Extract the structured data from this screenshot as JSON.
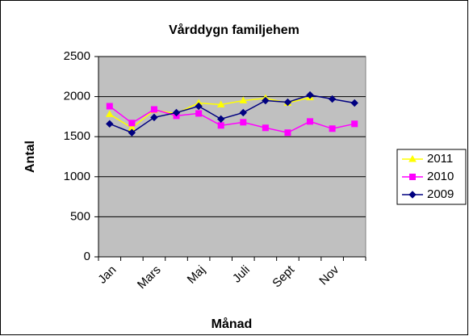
{
  "chart_data": {
    "type": "line",
    "title": "Vårddygn familjehem",
    "x_label": "Månad",
    "y_label": "Antal",
    "categories": [
      "Jan",
      null,
      "Mars",
      null,
      "Maj",
      null,
      "Juli",
      null,
      "Sept",
      null,
      "Nov",
      null
    ],
    "series": [
      {
        "name": "2011",
        "color": "#ffff00",
        "marker": "triangle",
        "values": [
          1780,
          1610,
          1830,
          1790,
          1920,
          1900,
          1950,
          1980,
          1920,
          1990,
          null,
          null
        ]
      },
      {
        "name": "2010",
        "color": "#ff00ff",
        "marker": "square",
        "values": [
          1880,
          1670,
          1840,
          1760,
          1790,
          1640,
          1680,
          1610,
          1550,
          1690,
          1600,
          1660
        ]
      },
      {
        "name": "2009",
        "color": "#000080",
        "marker": "diamond",
        "values": [
          1660,
          1550,
          1740,
          1800,
          1880,
          1720,
          1800,
          1950,
          1930,
          2020,
          1970,
          1920
        ]
      }
    ],
    "ylim": [
      0,
      2500
    ],
    "yticks": [
      0,
      500,
      1000,
      1500,
      2000,
      2500
    ],
    "grid": true,
    "legend": "right"
  }
}
